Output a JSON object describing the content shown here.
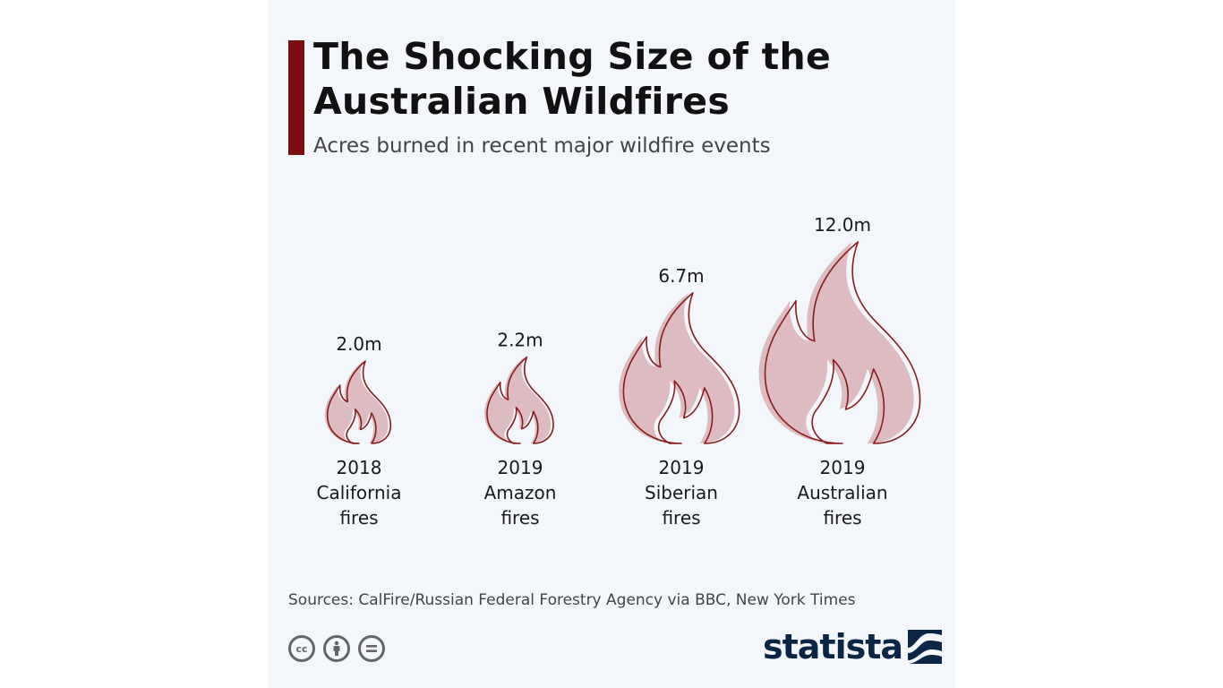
{
  "title": "The Shocking Size of the Australian Wildfires",
  "subtitle": "Acres burned in recent major wildfire events",
  "source": "Sources: CalFire/Russian Federal Forestry Agency via BBC, New York Times",
  "brand": "statista",
  "colors": {
    "accent": "#7d0f10",
    "flame_fill": "#dcbcc0",
    "flame_stroke": "#8a1c1c",
    "background": "#f3f6fa",
    "brand": "#0b2545"
  },
  "license_icons": [
    "creative-commons-icon",
    "attribution-icon",
    "no-derivatives-icon"
  ],
  "chart_data": {
    "type": "pictogram",
    "unit": "acres",
    "categories": [
      "2018 California fires",
      "2019 Amazon fires",
      "2019 Siberian fires",
      "2019 Australian fires"
    ],
    "values": [
      2.0,
      2.2,
      6.7,
      12.0
    ],
    "value_labels": [
      "2.0m",
      "2.2m",
      "6.7m",
      "12.0m"
    ],
    "category_labels": [
      "2018\nCalifornia\nfires",
      "2019\nAmazon\nfires",
      "2019\nSiberian\nfires",
      "2019\nAustralian\nfires"
    ]
  }
}
